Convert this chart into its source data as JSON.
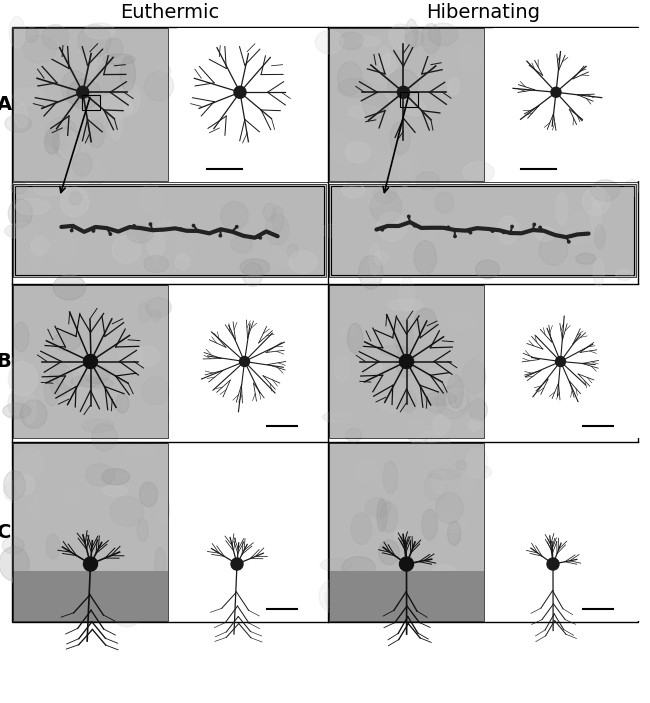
{
  "title_left": "Euthermic",
  "title_right": "Hibernating",
  "label_A": "A",
  "label_B": "B",
  "label_C": "C",
  "bg_color": "#ffffff",
  "img_gray_light": "#c8c8c8",
  "img_gray_mid": "#b0b0b0",
  "img_gray_dark": "#989898",
  "border_color": "#000000",
  "neuron_color": "#000000",
  "text_color": "#000000",
  "font_size_title": 14,
  "font_size_label": 14
}
